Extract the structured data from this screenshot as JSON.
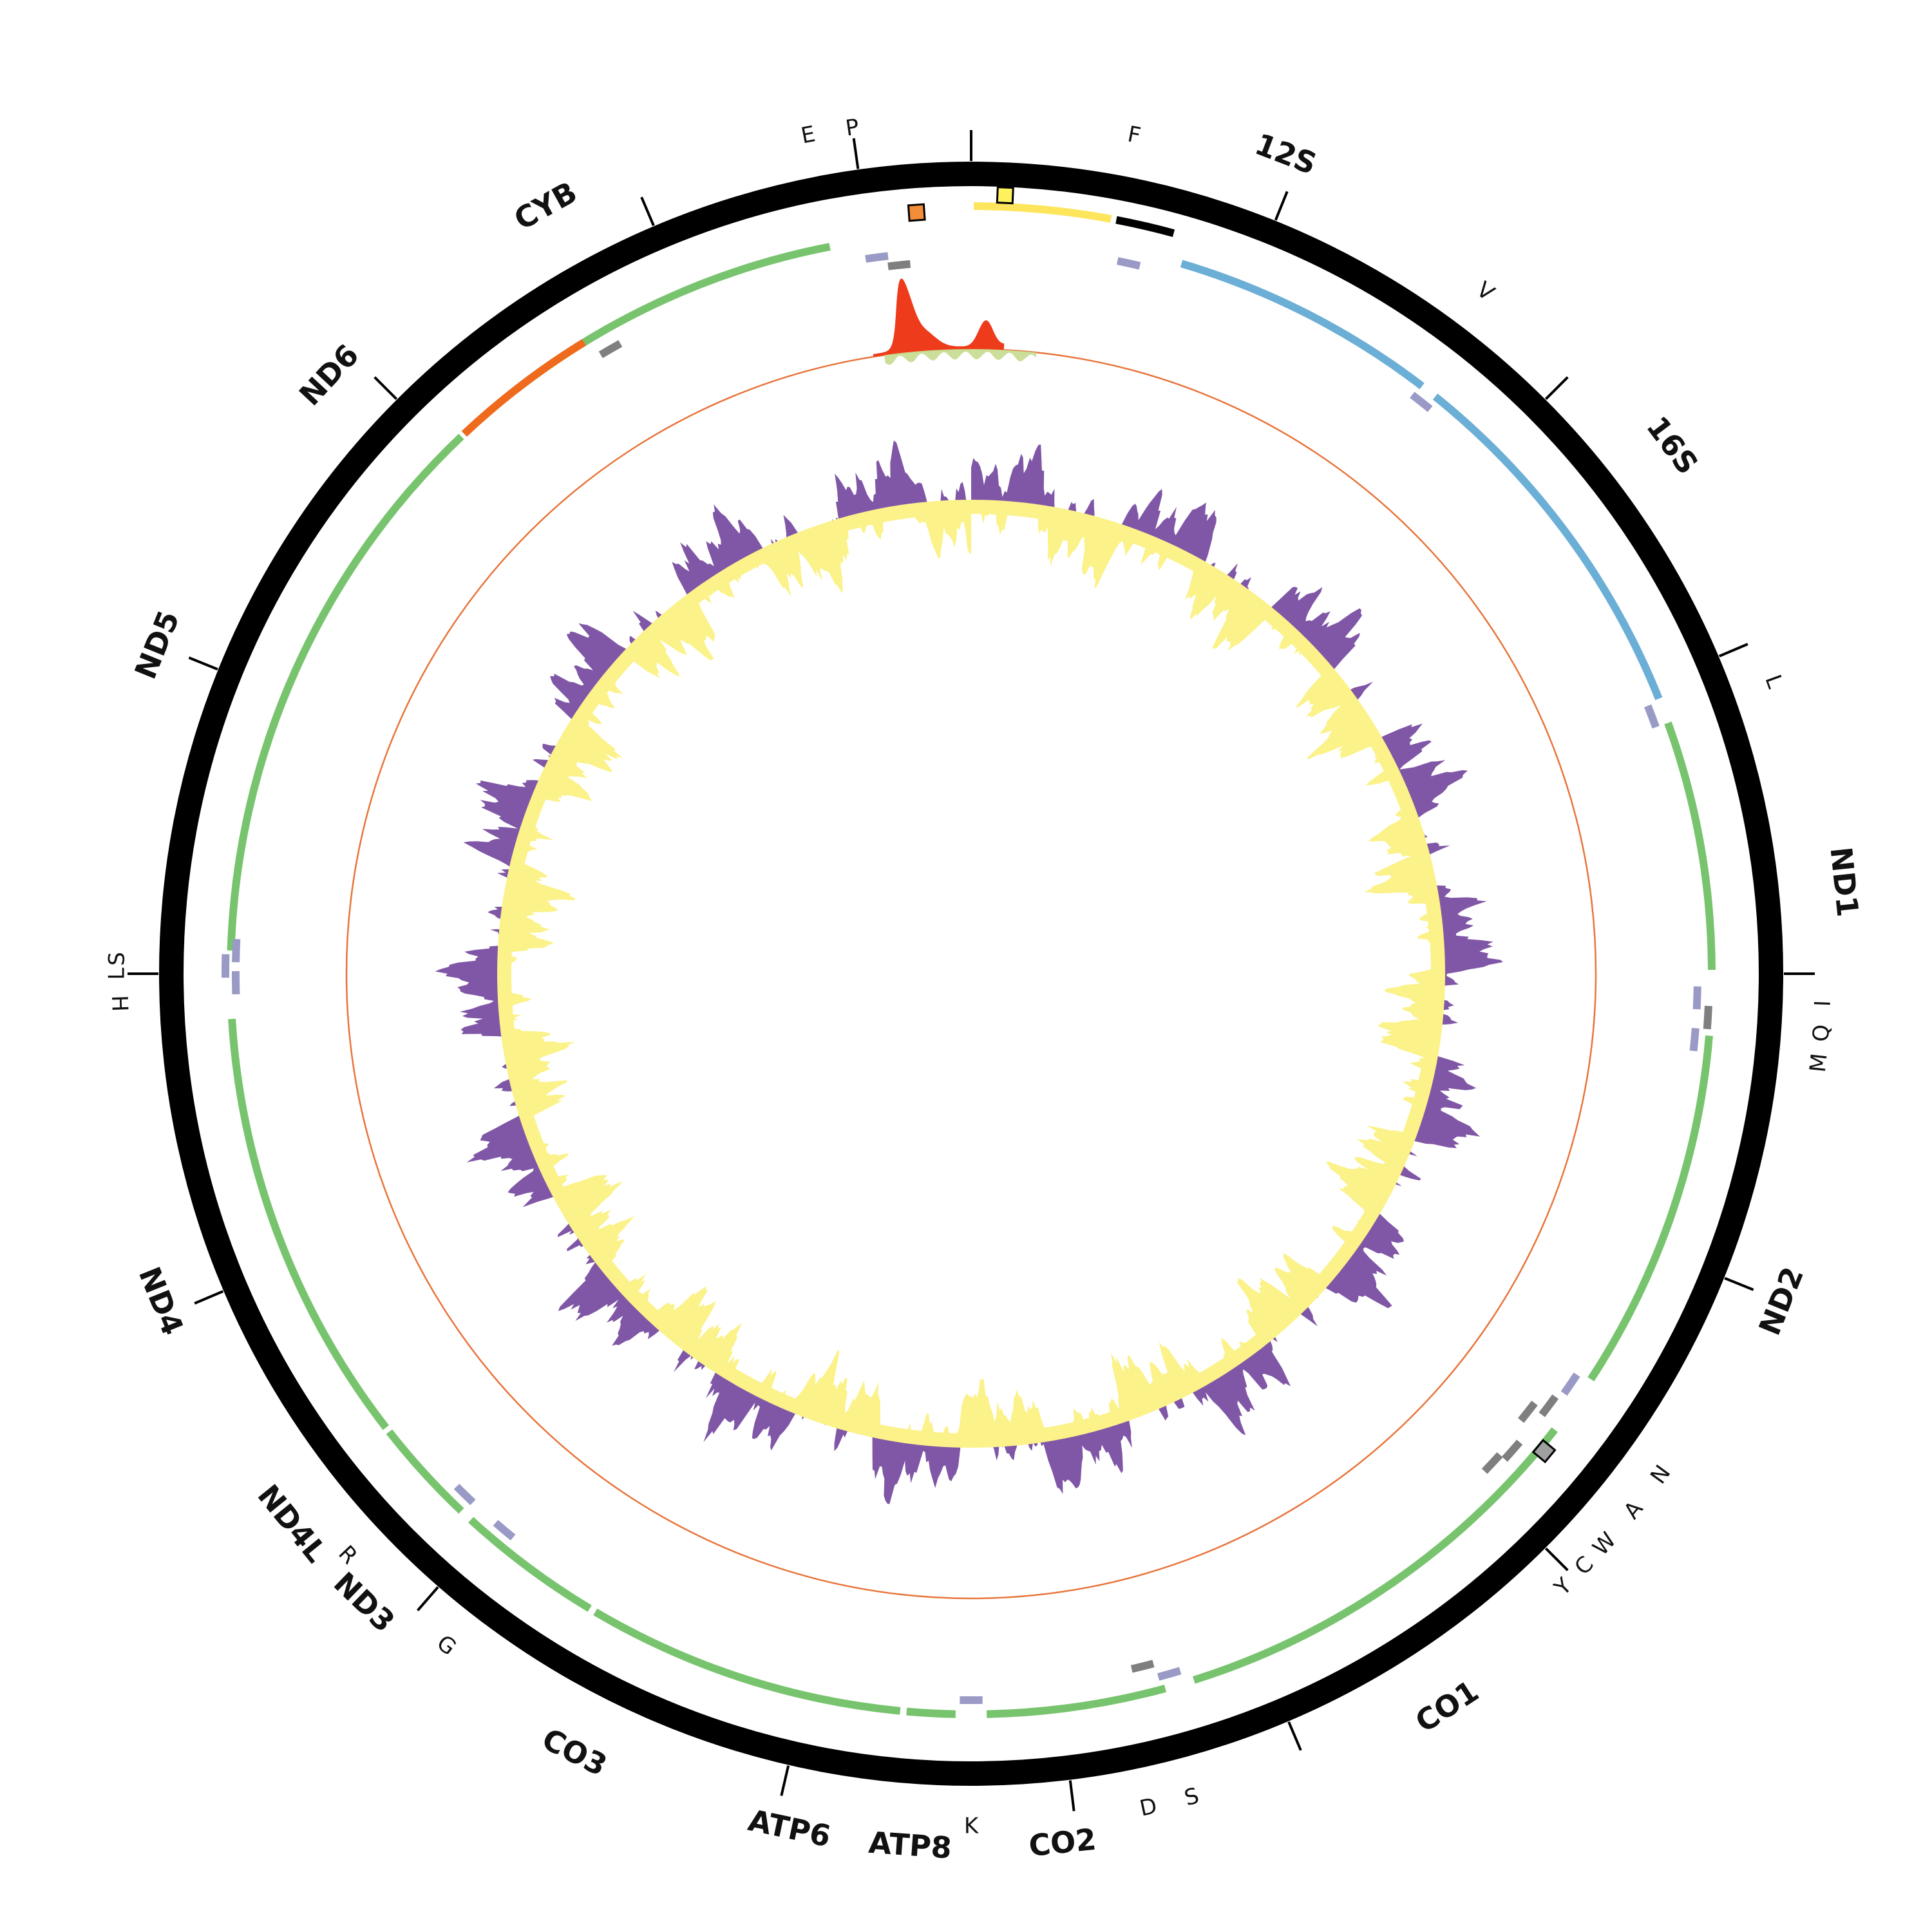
{
  "figure": {
    "type": "circular-mitogenome-map",
    "colors": {
      "backbone": "#000000",
      "pcg": "#78c46e",
      "pcg_minus": "#ef6a1c",
      "rrna": "#6baed6",
      "trna_plus": "#9a9ac6",
      "trna_minus": "#7f7f7f",
      "control_region": "#fde55c",
      "repeat": "#000000",
      "depth_peak": "#ee3b1c",
      "depth_minor": "#c6db8f",
      "coverage_line": "#e8743b",
      "gc_positive": "#8057a6",
      "gc_negative": "#fbf28a",
      "marker_orange": "#f28e3a",
      "marker_yellow": "#fdf25e",
      "marker_grey": "#a0a0a0"
    },
    "labels": [
      {
        "id": "E",
        "text": "E",
        "kind": "trna",
        "angle": -11
      },
      {
        "id": "P",
        "text": "P",
        "kind": "trna",
        "angle": -8
      },
      {
        "id": "F",
        "text": "F",
        "kind": "trna",
        "angle": 11
      },
      {
        "id": "12S",
        "text": "12S",
        "kind": "gene",
        "angle": 21
      },
      {
        "id": "V",
        "text": "V",
        "kind": "trna",
        "angle": 37
      },
      {
        "id": "16S",
        "text": "16S",
        "kind": "gene",
        "angle": 53
      },
      {
        "id": "L1",
        "text": "L",
        "kind": "trna",
        "angle": 70
      },
      {
        "id": "ND1",
        "text": "ND1",
        "kind": "gene",
        "angle": 84
      },
      {
        "id": "M",
        "text": "M",
        "kind": "trna",
        "angle": 96
      },
      {
        "id": "Q",
        "text": "Q",
        "kind": "trna",
        "angle": 94
      },
      {
        "id": "I",
        "text": "I",
        "kind": "trna",
        "angle": 92
      },
      {
        "id": "ND2",
        "text": "ND2",
        "kind": "gene",
        "angle": 112
      },
      {
        "id": "N",
        "text": "N",
        "kind": "trna",
        "angle": 126
      },
      {
        "id": "A",
        "text": "A",
        "kind": "trna",
        "angle": 129
      },
      {
        "id": "W",
        "text": "W",
        "kind": "trna",
        "angle": 132
      },
      {
        "id": "C",
        "text": "C",
        "kind": "trna",
        "angle": 134
      },
      {
        "id": "Y",
        "text": "Y",
        "kind": "trna",
        "angle": 136
      },
      {
        "id": "CO1",
        "text": "CO1",
        "kind": "gene",
        "angle": 147
      },
      {
        "id": "D",
        "text": "D",
        "kind": "trna",
        "angle": 168
      },
      {
        "id": "S1",
        "text": "S",
        "kind": "trna",
        "angle": 165
      },
      {
        "id": "CO2",
        "text": "CO2",
        "kind": "gene",
        "angle": 174
      },
      {
        "id": "K",
        "text": "K",
        "kind": "trna",
        "angle": 180
      },
      {
        "id": "ATP8",
        "text": "ATP8",
        "kind": "gene",
        "angle": 184
      },
      {
        "id": "ATP6",
        "text": "ATP6",
        "kind": "gene",
        "angle": 192
      },
      {
        "id": "CO3",
        "text": "CO3",
        "kind": "gene",
        "angle": 207
      },
      {
        "id": "G",
        "text": "G",
        "kind": "trna",
        "angle": 218
      },
      {
        "id": "ND3",
        "text": "ND3",
        "kind": "gene",
        "angle": 224
      },
      {
        "id": "R",
        "text": "R",
        "kind": "trna",
        "angle": 227
      },
      {
        "id": "ND4L",
        "text": "ND4L",
        "kind": "gene",
        "angle": 231
      },
      {
        "id": "ND4",
        "text": "ND4",
        "kind": "gene",
        "angle": 248
      },
      {
        "id": "H",
        "text": "H",
        "kind": "trna",
        "angle": 268
      },
      {
        "id": "S2",
        "text": "S",
        "kind": "trna",
        "angle": 271
      },
      {
        "id": "L2",
        "text": "L",
        "kind": "trna",
        "angle": 270
      },
      {
        "id": "ND5",
        "text": "ND5",
        "kind": "gene",
        "angle": 292
      },
      {
        "id": "ND6",
        "text": "ND6",
        "kind": "gene",
        "angle": 313
      },
      {
        "id": "CYB",
        "text": "CYB",
        "kind": "gene",
        "angle": 331
      }
    ]
  }
}
